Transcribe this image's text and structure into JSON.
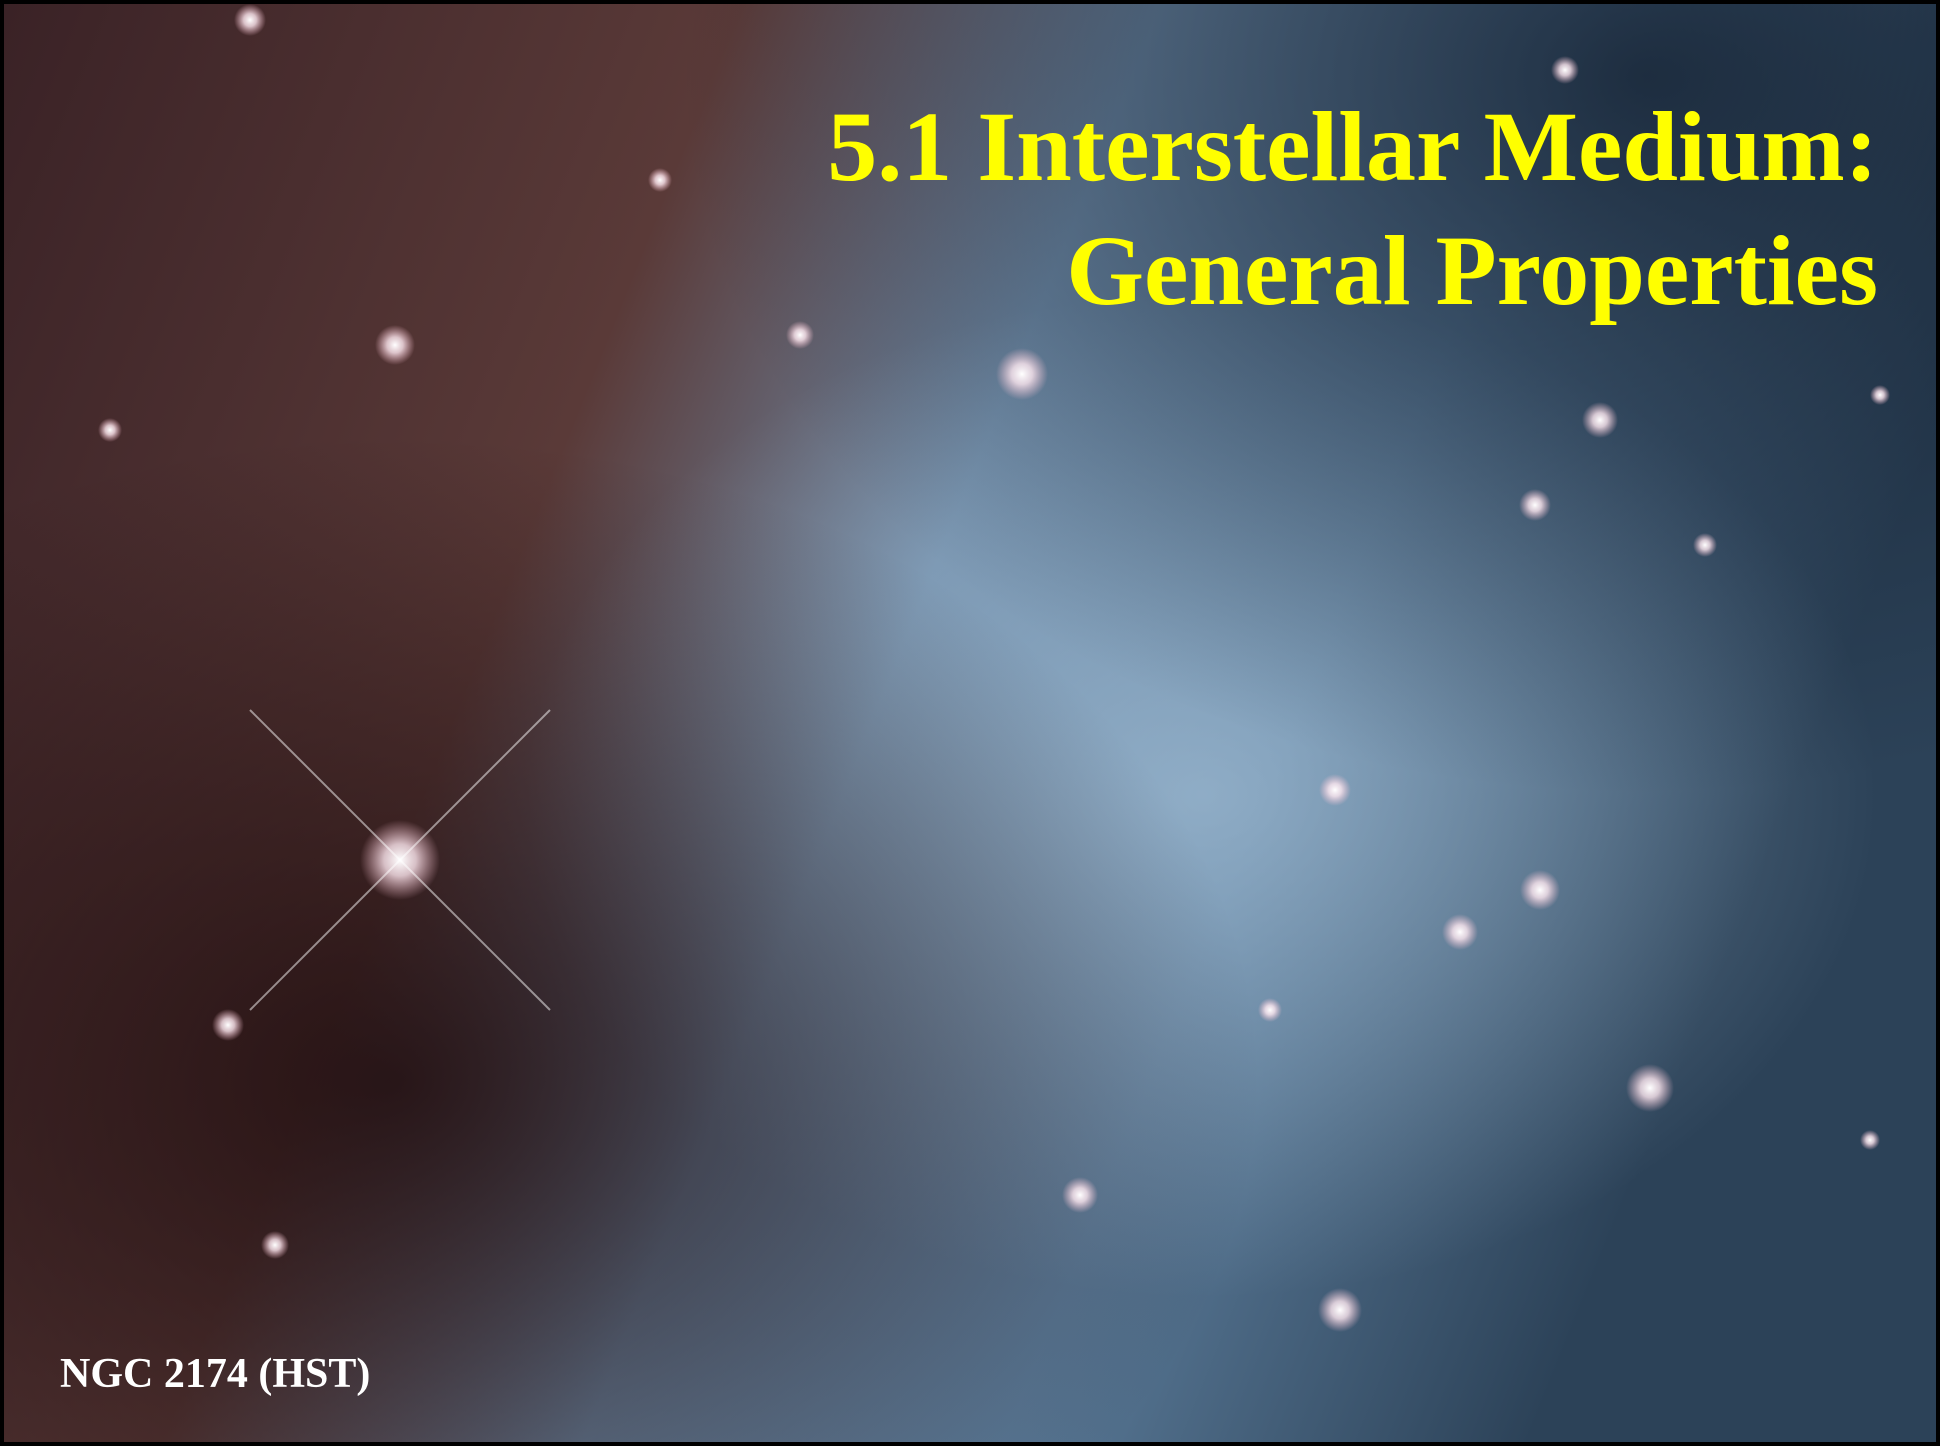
{
  "slide": {
    "title_lines": [
      "5.1 Interstellar Medium:",
      "General Properties"
    ],
    "caption": "NGC 2174 (HST)"
  }
}
